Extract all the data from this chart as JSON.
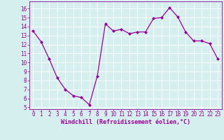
{
  "x": [
    0,
    1,
    2,
    3,
    4,
    5,
    6,
    7,
    8,
    9,
    10,
    11,
    12,
    13,
    14,
    15,
    16,
    17,
    18,
    19,
    20,
    21,
    22,
    23
  ],
  "y": [
    13.5,
    12.3,
    10.4,
    8.3,
    7.0,
    6.3,
    6.1,
    5.3,
    8.5,
    14.3,
    13.5,
    13.7,
    13.2,
    13.4,
    13.4,
    14.9,
    15.0,
    16.1,
    15.1,
    13.4,
    12.4,
    12.4,
    12.1,
    10.4
  ],
  "line_color": "#990099",
  "marker": "D",
  "marker_size": 2.0,
  "xlabel": "Windchill (Refroidissement éolien,°C)",
  "xlim": [
    -0.5,
    23.5
  ],
  "ylim": [
    4.8,
    16.8
  ],
  "yticks": [
    5,
    6,
    7,
    8,
    9,
    10,
    11,
    12,
    13,
    14,
    15,
    16
  ],
  "xticks": [
    0,
    1,
    2,
    3,
    4,
    5,
    6,
    7,
    8,
    9,
    10,
    11,
    12,
    13,
    14,
    15,
    16,
    17,
    18,
    19,
    20,
    21,
    22,
    23
  ],
  "background_color": "#d5efef",
  "grid_color": "#b0d8d8",
  "axis_label_color": "#990099",
  "tick_color": "#990099",
  "spine_color": "#990099",
  "xlabel_fontsize": 6.0,
  "tick_fontsize": 5.5,
  "linewidth": 0.9
}
